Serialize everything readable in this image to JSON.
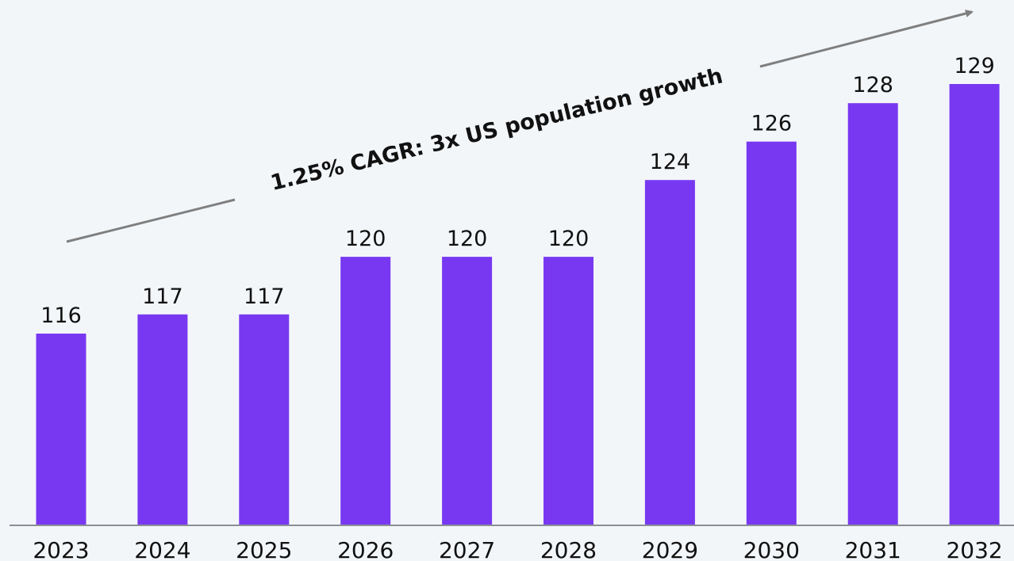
{
  "chart_data": {
    "type": "bar",
    "categories": [
      "2023",
      "2024",
      "2025",
      "2026",
      "2027",
      "2028",
      "2029",
      "2030",
      "2031",
      "2032"
    ],
    "values": [
      116,
      117,
      117,
      120,
      120,
      120,
      124,
      126,
      128,
      129
    ],
    "data_labels": [
      "116",
      "117",
      "117",
      "120",
      "120",
      "120",
      "124",
      "126",
      "128",
      "129"
    ],
    "title": "",
    "xlabel": "",
    "ylabel": "",
    "annotation": "1.25% CAGR: 3x US population growth",
    "grid": false,
    "legend": "none",
    "colors": {
      "bar": "#7838f1",
      "axis": "#8a8f96",
      "trend_arrow": "#7f7f7f",
      "background": "#f3f6f9"
    }
  }
}
